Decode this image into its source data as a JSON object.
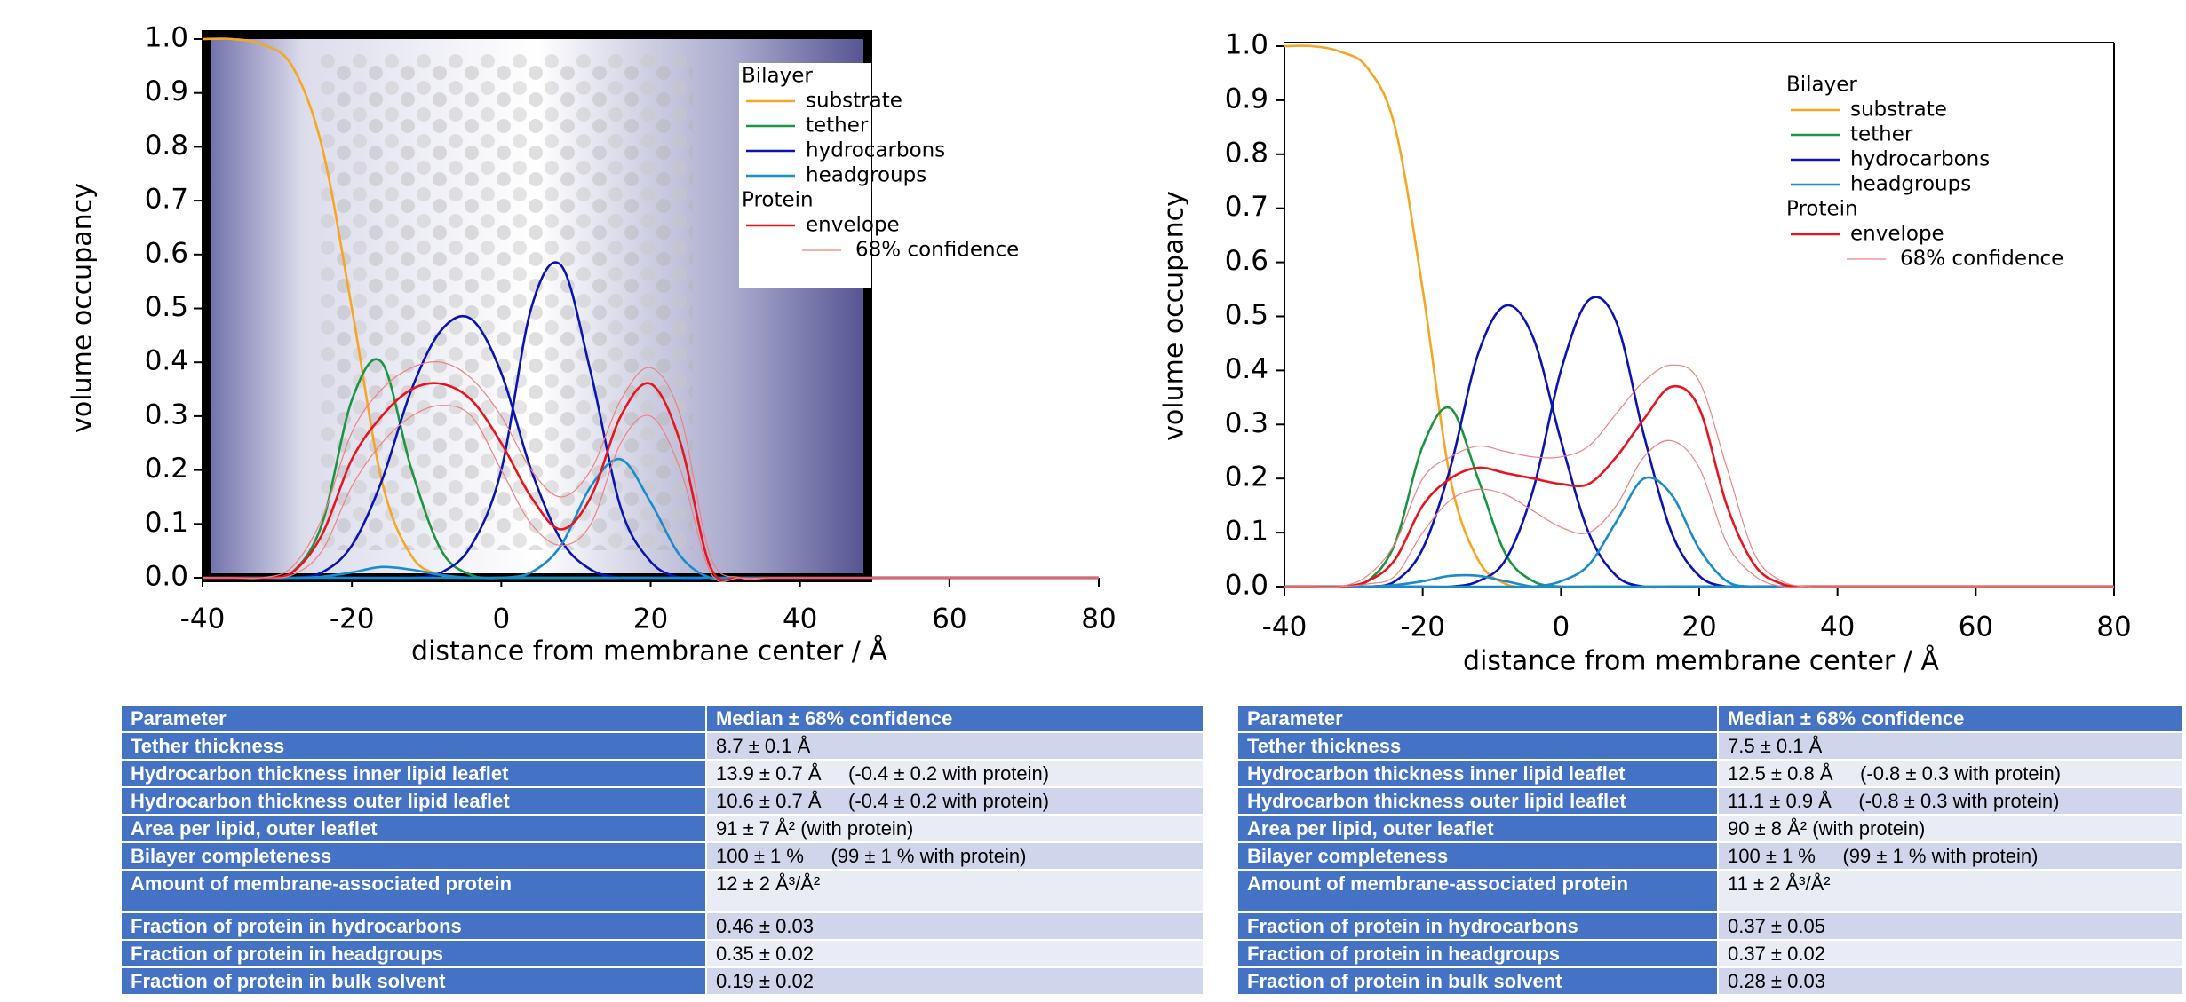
{
  "chart_data": [
    {
      "type": "line",
      "x_label": "distance from membrane center / Å",
      "y_label": "volume occupancy",
      "x": [
        -40,
        -36,
        -32,
        -28,
        -24,
        -20,
        -16,
        -12,
        -8,
        -4,
        0,
        4,
        8,
        12,
        16,
        20,
        24,
        28,
        32,
        36,
        40,
        80
      ],
      "xlim": [
        -40,
        80
      ],
      "xticks": [
        -40,
        -20,
        0,
        20,
        40,
        60,
        80
      ],
      "ylim": [
        0,
        1
      ],
      "yticks": [
        {
          "value": 0,
          "label": "0.0"
        },
        0.1,
        0.2,
        0.3,
        0.4,
        0.5,
        0.6,
        0.7,
        0.8,
        0.9,
        {
          "value": 1,
          "label": "1.0"
        }
      ],
      "groups": [
        {
          "title": "Bilayer",
          "series": [
            {
              "name": "substrate",
              "color": "#f5a623",
              "lines": [
                [
                  1,
                  1,
                  0.99,
                  0.95,
                  0.8,
                  0.5,
                  0.18,
                  0.04,
                  0.005,
                  0,
                  0,
                  0,
                  0,
                  0,
                  0,
                  0,
                  0,
                  0,
                  0,
                  0,
                  0,
                  0
                ]
              ]
            },
            {
              "name": "tether",
              "color": "#1a9641",
              "lines": [
                [
                  0,
                  0,
                  0,
                  0.01,
                  0.1,
                  0.33,
                  0.4,
                  0.2,
                  0.05,
                  0.005,
                  0,
                  0,
                  0,
                  0,
                  0,
                  0,
                  0,
                  0,
                  0,
                  0,
                  0,
                  0
                ]
              ]
            },
            {
              "name": "hydrocarbons",
              "color": "#0a14b4",
              "lines": [
                [
                  0,
                  0,
                  0,
                  0,
                  0.01,
                  0.06,
                  0.18,
                  0.35,
                  0.46,
                  0.48,
                  0.38,
                  0.2,
                  0.07,
                  0.015,
                  0,
                  0,
                  0,
                  0,
                  0,
                  0,
                  0,
                  0
                ],
                [
                  0,
                  0,
                  0,
                  0,
                  0,
                  0,
                  0,
                  0,
                  0.01,
                  0.06,
                  0.2,
                  0.5,
                  0.58,
                  0.38,
                  0.13,
                  0.03,
                  0,
                  0,
                  0,
                  0,
                  0,
                  0
                ]
              ]
            },
            {
              "name": "headgroups",
              "color": "#1a8ccc",
              "lines": [
                [
                  0,
                  0,
                  0,
                  0,
                  0.002,
                  0.01,
                  0.02,
                  0.015,
                  0.005,
                  0,
                  0,
                  0,
                  0,
                  0,
                  0,
                  0,
                  0,
                  0,
                  0,
                  0,
                  0,
                  0
                ],
                [
                  0,
                  0,
                  0,
                  0,
                  0,
                  0,
                  0,
                  0,
                  0,
                  0,
                  0,
                  0.01,
                  0.06,
                  0.17,
                  0.22,
                  0.14,
                  0.04,
                  0,
                  0,
                  0,
                  0,
                  0
                ]
              ]
            }
          ]
        },
        {
          "title": "Protein",
          "series": [
            {
              "name": "envelope",
              "color": "#e8141e",
              "lines": [
                [
                  0,
                  0,
                  0,
                  0.01,
                  0.08,
                  0.22,
                  0.3,
                  0.35,
                  0.36,
                  0.33,
                  0.25,
                  0.15,
                  0.09,
                  0.15,
                  0.3,
                  0.36,
                  0.25,
                  0.02,
                  0,
                  0,
                  0,
                  0
                ]
              ]
            },
            {
              "name": "68% confidence",
              "color": "#f08080",
              "thin": true,
              "lines": [
                [
                  0,
                  0,
                  0,
                  0.005,
                  0.05,
                  0.17,
                  0.25,
                  0.3,
                  0.32,
                  0.3,
                  0.2,
                  0.1,
                  0.06,
                  0.1,
                  0.25,
                  0.3,
                  0.2,
                  0.01,
                  0,
                  0,
                  0,
                  0
                ],
                [
                  0,
                  0,
                  0,
                  0.02,
                  0.11,
                  0.27,
                  0.35,
                  0.39,
                  0.4,
                  0.37,
                  0.3,
                  0.2,
                  0.15,
                  0.2,
                  0.33,
                  0.39,
                  0.3,
                  0.04,
                  0,
                  0,
                  0,
                  0
                ]
              ]
            }
          ]
        }
      ]
    },
    {
      "type": "line",
      "x_label": "distance from membrane center / Å",
      "y_label": "volume occupancy",
      "x": [
        -40,
        -36,
        -32,
        -28,
        -24,
        -20,
        -16,
        -12,
        -8,
        -4,
        0,
        4,
        8,
        12,
        16,
        20,
        24,
        28,
        32,
        36,
        40,
        80
      ],
      "xlim": [
        -40,
        80
      ],
      "xticks": [
        -40,
        -20,
        0,
        20,
        40,
        60,
        80
      ],
      "ylim": [
        0,
        1
      ],
      "yticks": [
        {
          "value": 0,
          "label": "0.0"
        },
        0.1,
        0.2,
        0.3,
        0.4,
        0.5,
        0.6,
        0.7,
        0.8,
        0.9,
        {
          "value": 1,
          "label": "1.0"
        }
      ],
      "groups": [
        {
          "title": "Bilayer",
          "series": [
            {
              "name": "substrate",
              "color": "#f5a623",
              "lines": [
                [
                  1,
                  1,
                  0.99,
                  0.96,
                  0.85,
                  0.55,
                  0.2,
                  0.05,
                  0.005,
                  0,
                  0,
                  0,
                  0,
                  0,
                  0,
                  0,
                  0,
                  0,
                  0,
                  0,
                  0,
                  0
                ]
              ]
            },
            {
              "name": "tether",
              "color": "#1a9641",
              "lines": [
                [
                  0,
                  0,
                  0,
                  0.01,
                  0.08,
                  0.26,
                  0.33,
                  0.2,
                  0.06,
                  0.01,
                  0,
                  0,
                  0,
                  0,
                  0,
                  0,
                  0,
                  0,
                  0,
                  0,
                  0,
                  0
                ]
              ]
            },
            {
              "name": "hydrocarbons",
              "color": "#0a14b4",
              "lines": [
                [
                  0,
                  0,
                  0,
                  0,
                  0.01,
                  0.07,
                  0.22,
                  0.43,
                  0.52,
                  0.46,
                  0.27,
                  0.1,
                  0.02,
                  0,
                  0,
                  0,
                  0,
                  0,
                  0,
                  0,
                  0,
                  0
                ],
                [
                  0,
                  0,
                  0,
                  0,
                  0,
                  0,
                  0,
                  0.01,
                  0.05,
                  0.18,
                  0.4,
                  0.53,
                  0.49,
                  0.28,
                  0.1,
                  0.02,
                  0,
                  0,
                  0,
                  0,
                  0,
                  0
                ]
              ]
            },
            {
              "name": "headgroups",
              "color": "#1a8ccc",
              "lines": [
                [
                  0,
                  0,
                  0,
                  0,
                  0.003,
                  0.01,
                  0.02,
                  0.02,
                  0.01,
                  0,
                  0,
                  0,
                  0,
                  0,
                  0,
                  0,
                  0,
                  0,
                  0,
                  0,
                  0,
                  0
                ],
                [
                  0,
                  0,
                  0,
                  0,
                  0,
                  0,
                  0,
                  0,
                  0,
                  0,
                  0.01,
                  0.04,
                  0.12,
                  0.2,
                  0.17,
                  0.07,
                  0.01,
                  0,
                  0,
                  0,
                  0,
                  0
                ]
              ]
            }
          ]
        },
        {
          "title": "Protein",
          "series": [
            {
              "name": "envelope",
              "color": "#e8141e",
              "lines": [
                [
                  0,
                  0,
                  0,
                  0.01,
                  0.05,
                  0.15,
                  0.2,
                  0.22,
                  0.21,
                  0.2,
                  0.19,
                  0.19,
                  0.24,
                  0.31,
                  0.37,
                  0.33,
                  0.15,
                  0.04,
                  0.005,
                  0,
                  0,
                  0
                ]
              ]
            },
            {
              "name": "68% confidence",
              "color": "#f08080",
              "thin": true,
              "lines": [
                [
                  0,
                  0,
                  0,
                  0.005,
                  0.02,
                  0.1,
                  0.16,
                  0.18,
                  0.17,
                  0.14,
                  0.11,
                  0.1,
                  0.15,
                  0.24,
                  0.27,
                  0.22,
                  0.08,
                  0.02,
                  0,
                  0,
                  0,
                  0
                ],
                [
                  0,
                  0,
                  0,
                  0.02,
                  0.08,
                  0.2,
                  0.24,
                  0.26,
                  0.25,
                  0.24,
                  0.24,
                  0.26,
                  0.32,
                  0.38,
                  0.41,
                  0.38,
                  0.22,
                  0.06,
                  0.01,
                  0,
                  0,
                  0
                ]
              ]
            }
          ]
        }
      ]
    }
  ],
  "tables": [
    {
      "header": [
        "Parameter",
        "Median ± 68% confidence"
      ],
      "rows": [
        [
          "Tether thickness",
          "8.7 ± 0.1 Å"
        ],
        [
          "Hydrocarbon thickness inner lipid leaflet",
          "13.9 ± 0.7 Å     (-0.4 ± 0.2 with protein)"
        ],
        [
          "Hydrocarbon thickness outer lipid leaflet",
          "10.6 ± 0.7 Å     (-0.4 ± 0.2 with protein)"
        ],
        [
          "Area per lipid, outer leaflet",
          "91 ± 7 Å² (with protein)"
        ],
        [
          "Bilayer completeness",
          "100 ± 1 %     (99 ± 1 % with protein)"
        ],
        [
          "Amount of membrane-associated protein",
          "12 ± 2 Å³/Å²"
        ],
        [
          "Fraction of protein in hydrocarbons",
          "0.46 ± 0.03"
        ],
        [
          "Fraction of protein in headgroups",
          "0.35 ± 0.02"
        ],
        [
          "Fraction of protein in bulk solvent",
          "0.19 ± 0.02"
        ]
      ]
    },
    {
      "header": [
        "Parameter",
        "Median ± 68% confidence"
      ],
      "rows": [
        [
          "Tether thickness",
          "7.5 ± 0.1 Å"
        ],
        [
          "Hydrocarbon thickness inner lipid leaflet",
          "12.5 ± 0.8 Å     (-0.8 ± 0.3 with protein)"
        ],
        [
          "Hydrocarbon thickness outer lipid leaflet",
          "11.1 ± 0.9 Å     (-0.8 ± 0.3 with protein)"
        ],
        [
          "Area per lipid, outer leaflet",
          "90 ± 8 Å² (with protein)"
        ],
        [
          "Bilayer completeness",
          "100 ± 1 %     (99 ± 1 % with protein)"
        ],
        [
          "Amount of membrane-associated protein",
          "11 ± 2 Å³/Å²"
        ],
        [
          "Fraction of protein in hydrocarbons",
          "0.37 ± 0.05"
        ],
        [
          "Fraction of protein in headgroups",
          "0.37 ± 0.02"
        ],
        [
          "Fraction of protein in bulk solvent",
          "0.28 ± 0.03"
        ]
      ]
    }
  ]
}
